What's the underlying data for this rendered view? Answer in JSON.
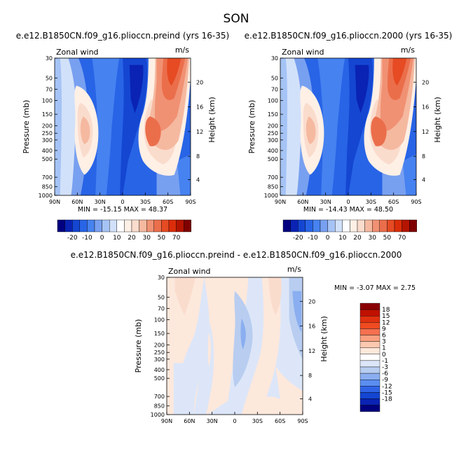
{
  "figure": {
    "title": "SON"
  },
  "chart_data": [
    {
      "type": "heatmap",
      "title": "e.e12.B1850CN.f09_g16.plioccn.preind (yrs 16-35)",
      "left_label": "Zonal wind",
      "right_label": "m/s",
      "ylabel": "Pressure (mb)",
      "ylabel_right": "Height (km)",
      "x_ticks": [
        "90N",
        "60N",
        "30N",
        "0",
        "30S",
        "60S",
        "90S"
      ],
      "y_ticks": [
        "30",
        "50",
        "70",
        "100",
        "150",
        "200",
        "250",
        "300",
        "400",
        "500",
        "700",
        "850",
        "1000"
      ],
      "height_ticks": [
        "20",
        "16",
        "12",
        "8",
        "4"
      ],
      "min": "-15.15",
      "max": "48.37",
      "stats_label": "MIN = -15.15   MAX = 48.37",
      "colorbar": {
        "orientation": "horizontal",
        "labels": [
          "-20",
          "-10",
          "0",
          "10",
          "20",
          "30",
          "50",
          "70"
        ]
      }
    },
    {
      "type": "heatmap",
      "title": "e.e12.B1850CN.f09_g16.plioccn.2000 (yrs 16-35)",
      "left_label": "Zonal wind",
      "right_label": "m/s",
      "ylabel": "Pressure (mb)",
      "ylabel_right": "Height (km)",
      "x_ticks": [
        "90N",
        "60N",
        "30N",
        "0",
        "30S",
        "60S",
        "90S"
      ],
      "y_ticks": [
        "30",
        "50",
        "70",
        "100",
        "150",
        "200",
        "250",
        "300",
        "400",
        "500",
        "700",
        "850",
        "1000"
      ],
      "height_ticks": [
        "20",
        "16",
        "12",
        "8",
        "4"
      ],
      "min": "-14.43",
      "max": "48.50",
      "stats_label": "MIN = -14.43   MAX = 48.50",
      "colorbar": {
        "orientation": "horizontal",
        "labels": [
          "-20",
          "-10",
          "0",
          "10",
          "20",
          "30",
          "50",
          "70"
        ]
      }
    },
    {
      "type": "heatmap",
      "title": "e.e12.B1850CN.f09_g16.plioccn.preind - e.e12.B1850CN.f09_g16.plioccn.2000",
      "left_label": "Zonal wind",
      "right_label": "m/s",
      "ylabel": "Pressure (mb)",
      "ylabel_right": "Height (km)",
      "x_ticks": [
        "90N",
        "60N",
        "30N",
        "0",
        "30S",
        "60S",
        "90S"
      ],
      "y_ticks": [
        "30",
        "50",
        "70",
        "100",
        "150",
        "200",
        "250",
        "300",
        "400",
        "500",
        "700",
        "850",
        "1000"
      ],
      "height_ticks": [
        "20",
        "16",
        "12",
        "8",
        "4"
      ],
      "min": "-3.07",
      "max": "2.75",
      "stats_label": "MIN = -3.07   MAX = 2.75",
      "colorbar": {
        "orientation": "vertical",
        "labels": [
          "18",
          "15",
          "12",
          "9",
          "6",
          "3",
          "1",
          "0",
          "-1",
          "-3",
          "-6",
          "-9",
          "-12",
          "-15",
          "-18"
        ]
      }
    }
  ],
  "colors": {
    "wind_scale": [
      "#000080",
      "#0a23b4",
      "#1446d2",
      "#2864e6",
      "#4682f0",
      "#78a0f0",
      "#a5c3f5",
      "#d2e1fa",
      "#ffffff",
      "#fff0e6",
      "#fadccd",
      "#f5b9a0",
      "#f09173",
      "#eb6e4b",
      "#e64b23",
      "#dc2d0a",
      "#b41400",
      "#800000"
    ],
    "diff_scale": [
      "#8b0000",
      "#c01000",
      "#e03010",
      "#f04a20",
      "#f57050",
      "#faa080",
      "#fcc8b0",
      "#fde8dc",
      "#ffffff",
      "#dce6f8",
      "#b8cdf0",
      "#8aaef0",
      "#5a8ef0",
      "#3064e6",
      "#1446d2",
      "#0a23b4",
      "#000080"
    ]
  }
}
